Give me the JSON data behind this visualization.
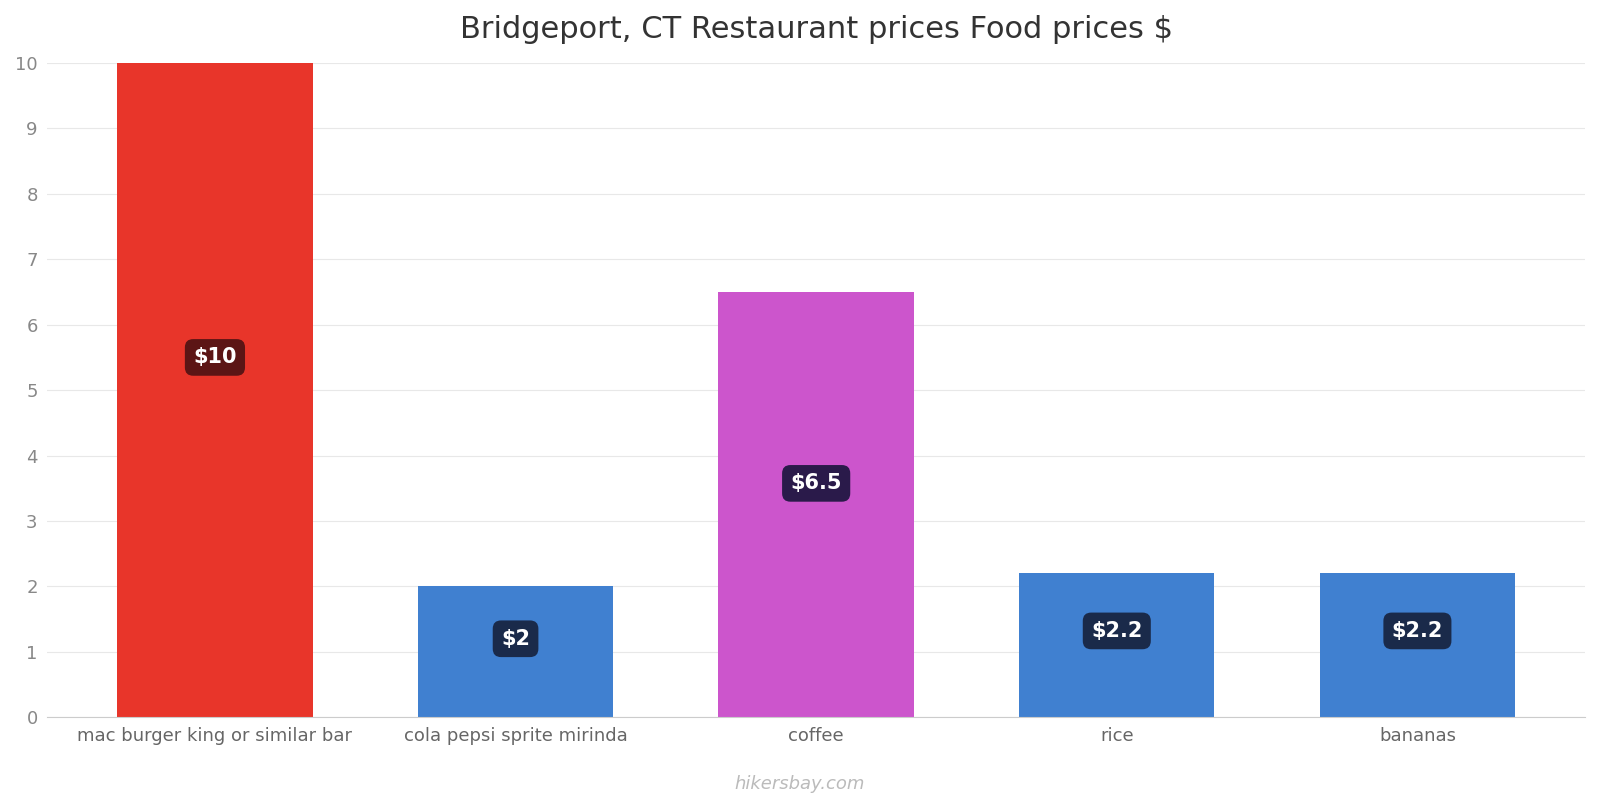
{
  "title": "Bridgeport, CT Restaurant prices Food prices $",
  "categories": [
    "mac burger king or similar bar",
    "cola pepsi sprite mirinda",
    "coffee",
    "rice",
    "bananas"
  ],
  "values": [
    10,
    2,
    6.5,
    2.2,
    2.2
  ],
  "bar_colors": [
    "#E8352A",
    "#4080D0",
    "#CC55CC",
    "#4080D0",
    "#4080D0"
  ],
  "label_texts": [
    "$10",
    "$2",
    "$6.5",
    "$2.2",
    "$2.2"
  ],
  "label_bg_colors": [
    "#5C1515",
    "#1A2A4A",
    "#2A1A4A",
    "#1A2A4A",
    "#1A2A4A"
  ],
  "label_text_color": "#FFFFFF",
  "ylim": [
    0,
    10
  ],
  "yticks": [
    0,
    1,
    2,
    3,
    4,
    5,
    6,
    7,
    8,
    9,
    10
  ],
  "background_color": "#FFFFFF",
  "title_fontsize": 22,
  "tick_fontsize": 13,
  "label_fontsize": 15,
  "watermark": "hikersbay.com",
  "watermark_color": "#BBBBBB",
  "bar_width": 0.65,
  "x_positions": [
    0,
    1,
    2,
    3,
    4
  ]
}
